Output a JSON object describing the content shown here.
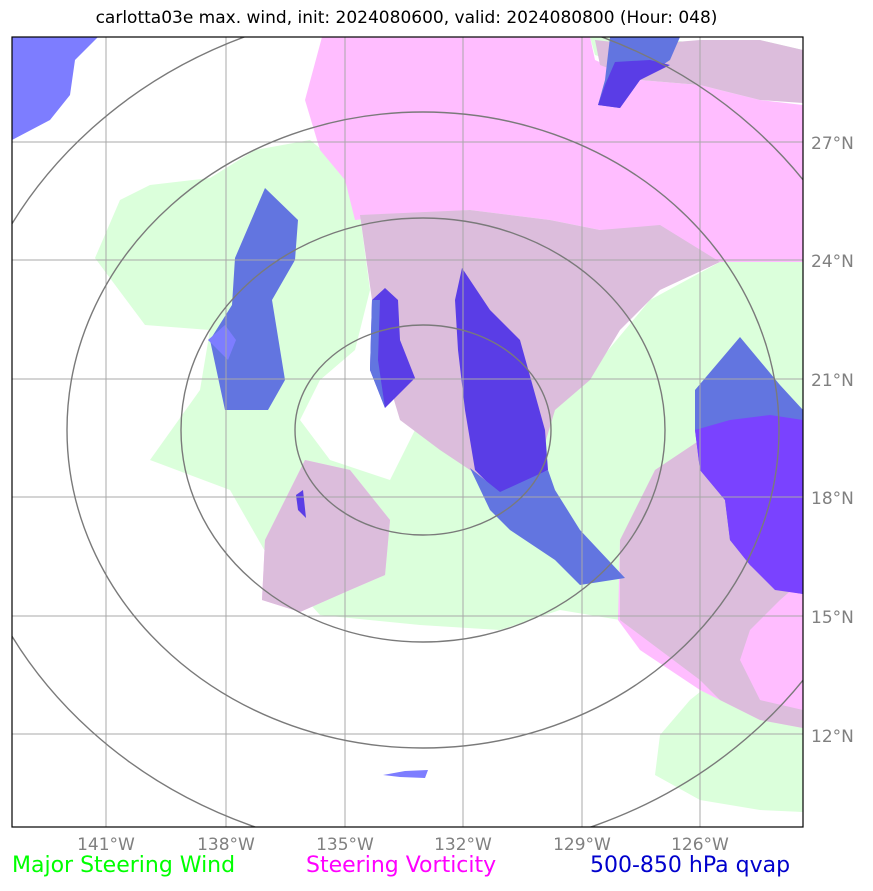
{
  "title": "carlotta03e max. wind, init: 2024080600, valid: 2024080800 (Hour: 048)",
  "axes": {
    "lon_labels": [
      "141°W",
      "138°W",
      "135°W",
      "132°W",
      "129°W",
      "126°W"
    ],
    "lat_labels": [
      "27°N",
      "24°N",
      "21°N",
      "18°N",
      "15°N",
      "12°N"
    ]
  },
  "legend": {
    "wind": {
      "label": "Major Steering Wind",
      "color": "#00ff00"
    },
    "vorticity": {
      "label": "Steering Vorticity",
      "color": "#ff00ff"
    },
    "qvap": {
      "label": "500-850 hPa qvap",
      "color": "#0000cc"
    }
  },
  "colors": {
    "wind_fill": "#dbffdb",
    "vorticity_fill": "#ffbdff",
    "overlap_fill": "#dcbddc",
    "qvap_fill": "#6275e0",
    "qvap_strong_fill": "#5a3de6",
    "qvap_violet_fill": "#7a42ff",
    "qvap_light_fill": "#7d7dff",
    "grid": "#a8a8a8",
    "range_rings": "#7a7a7a"
  }
}
